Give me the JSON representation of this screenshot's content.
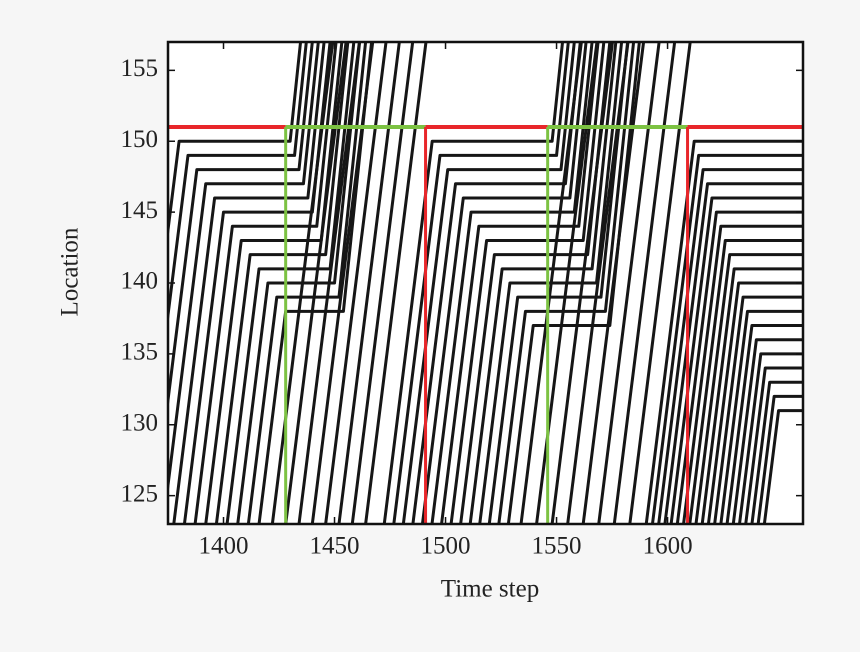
{
  "chart_data": {
    "type": "trajectory",
    "x_label": "Time step",
    "y_label": "Location",
    "xlim": [
      1375,
      1661
    ],
    "ylim": [
      123,
      157
    ],
    "xticks": [
      1400,
      1450,
      1500,
      1550,
      1600
    ],
    "yticks": [
      125,
      130,
      135,
      140,
      145,
      150,
      155
    ],
    "line_color": "#161616",
    "signal": {
      "stop_line": 151,
      "colors": {
        "red": "#e8262a",
        "green": "#7cc242"
      },
      "phases": [
        {
          "state": "red",
          "start": 1375,
          "end": 1428
        },
        {
          "state": "green",
          "start": 1428,
          "end": 1491
        },
        {
          "state": "red",
          "start": 1491,
          "end": 1546
        },
        {
          "state": "green",
          "start": 1546,
          "end": 1609
        },
        {
          "state": "red",
          "start": 1609,
          "end": 1661
        }
      ]
    },
    "series": [
      {
        "x": [
          1358.4,
          1380,
          1430,
          1434.7
        ],
        "y": [
          123,
          150,
          150,
          157
        ]
      },
      {
        "x": [
          1363.2,
          1384,
          1432,
          1437.3
        ],
        "y": [
          123,
          149,
          149,
          157
        ]
      },
      {
        "x": [
          1368,
          1388,
          1434,
          1440
        ],
        "y": [
          123,
          148,
          148,
          157
        ]
      },
      {
        "x": [
          1372.8,
          1392,
          1436,
          1442.7
        ],
        "y": [
          123,
          147,
          147,
          157
        ]
      },
      {
        "x": [
          1377.6,
          1396,
          1438,
          1445.3
        ],
        "y": [
          123,
          146,
          146,
          157
        ]
      },
      {
        "x": [
          1382.4,
          1400,
          1440,
          1448
        ],
        "y": [
          123,
          145,
          145,
          157
        ]
      },
      {
        "x": [
          1387.2,
          1404,
          1442,
          1450.7
        ],
        "y": [
          123,
          144,
          144,
          157
        ]
      },
      {
        "x": [
          1392,
          1408,
          1444,
          1453.3
        ],
        "y": [
          123,
          143,
          143,
          157
        ]
      },
      {
        "x": [
          1396.8,
          1412,
          1446,
          1456
        ],
        "y": [
          123,
          142,
          142,
          157
        ]
      },
      {
        "x": [
          1401.6,
          1416,
          1448,
          1458.7
        ],
        "y": [
          123,
          141,
          141,
          157
        ]
      },
      {
        "x": [
          1406.4,
          1420,
          1450,
          1461.3
        ],
        "y": [
          123,
          140,
          140,
          157
        ]
      },
      {
        "x": [
          1411.2,
          1424,
          1452,
          1464
        ],
        "y": [
          123,
          139,
          139,
          157
        ]
      },
      {
        "x": [
          1416,
          1428,
          1454,
          1466.7
        ],
        "y": [
          123,
          138,
          138,
          157
        ]
      },
      {
        "x": [
          1422,
          1449.2
        ],
        "y": [
          123,
          157
        ]
      },
      {
        "x": [
          1428,
          1455.2
        ],
        "y": [
          123,
          157
        ]
      },
      {
        "x": [
          1434,
          1461.2
        ],
        "y": [
          123,
          157
        ]
      },
      {
        "x": [
          1440,
          1467.2
        ],
        "y": [
          123,
          157
        ]
      },
      {
        "x": [
          1446,
          1473.2
        ],
        "y": [
          123,
          157
        ]
      },
      {
        "x": [
          1452,
          1479.2
        ],
        "y": [
          123,
          157
        ]
      },
      {
        "x": [
          1458,
          1485.2
        ],
        "y": [
          123,
          157
        ]
      },
      {
        "x": [
          1464,
          1491.2
        ],
        "y": [
          123,
          157
        ]
      },
      {
        "x": [
          1472.4,
          1494,
          1548,
          1552.7
        ],
        "y": [
          123,
          150,
          150,
          157
        ]
      },
      {
        "x": [
          1476.7,
          1497.5,
          1550,
          1555.3
        ],
        "y": [
          123,
          149,
          149,
          157
        ]
      },
      {
        "x": [
          1481,
          1501,
          1552,
          1558
        ],
        "y": [
          123,
          148,
          148,
          157
        ]
      },
      {
        "x": [
          1485.3,
          1504.5,
          1554,
          1560.7
        ],
        "y": [
          123,
          147,
          147,
          157
        ]
      },
      {
        "x": [
          1489.6,
          1508,
          1556,
          1563.3
        ],
        "y": [
          123,
          146,
          146,
          157
        ]
      },
      {
        "x": [
          1493.9,
          1511.5,
          1558,
          1566
        ],
        "y": [
          123,
          145,
          145,
          157
        ]
      },
      {
        "x": [
          1498.2,
          1515,
          1560,
          1568.7
        ],
        "y": [
          123,
          144,
          144,
          157
        ]
      },
      {
        "x": [
          1502.5,
          1518.5,
          1562,
          1571.3
        ],
        "y": [
          123,
          143,
          143,
          157
        ]
      },
      {
        "x": [
          1506.8,
          1522,
          1564,
          1574
        ],
        "y": [
          123,
          142,
          142,
          157
        ]
      },
      {
        "x": [
          1511.1,
          1525.5,
          1566,
          1576.7
        ],
        "y": [
          123,
          141,
          141,
          157
        ]
      },
      {
        "x": [
          1515.4,
          1529,
          1568,
          1579.3
        ],
        "y": [
          123,
          140,
          140,
          157
        ]
      },
      {
        "x": [
          1519.7,
          1532.5,
          1570,
          1582
        ],
        "y": [
          123,
          139,
          139,
          157
        ]
      },
      {
        "x": [
          1524,
          1536,
          1572,
          1584.7
        ],
        "y": [
          123,
          138,
          138,
          157
        ]
      },
      {
        "x": [
          1528.3,
          1539.5,
          1574,
          1587.3
        ],
        "y": [
          123,
          137,
          137,
          157
        ]
      },
      {
        "x": [
          1534,
          1561.2
        ],
        "y": [
          123,
          157
        ]
      },
      {
        "x": [
          1541,
          1568.2
        ],
        "y": [
          123,
          157
        ]
      },
      {
        "x": [
          1548,
          1575.2
        ],
        "y": [
          123,
          157
        ]
      },
      {
        "x": [
          1555,
          1582.2
        ],
        "y": [
          123,
          157
        ]
      },
      {
        "x": [
          1562,
          1589.2
        ],
        "y": [
          123,
          157
        ]
      },
      {
        "x": [
          1569,
          1596.2
        ],
        "y": [
          123,
          157
        ]
      },
      {
        "x": [
          1576,
          1603.2
        ],
        "y": [
          123,
          157
        ]
      },
      {
        "x": [
          1583,
          1610.2
        ],
        "y": [
          123,
          157
        ]
      },
      {
        "x": [
          1590.4,
          1612,
          1661
        ],
        "y": [
          123,
          150,
          150
        ]
      },
      {
        "x": [
          1593.2,
          1614,
          1661
        ],
        "y": [
          123,
          149,
          149
        ]
      },
      {
        "x": [
          1596,
          1616,
          1661
        ],
        "y": [
          123,
          148,
          148
        ]
      },
      {
        "x": [
          1598.8,
          1618,
          1661
        ],
        "y": [
          123,
          147,
          147
        ]
      },
      {
        "x": [
          1601.6,
          1620,
          1661
        ],
        "y": [
          123,
          146,
          146
        ]
      },
      {
        "x": [
          1604.4,
          1622,
          1661
        ],
        "y": [
          123,
          145,
          145
        ]
      },
      {
        "x": [
          1607.2,
          1624,
          1661
        ],
        "y": [
          123,
          144,
          144
        ]
      },
      {
        "x": [
          1610,
          1626,
          1661
        ],
        "y": [
          123,
          143,
          143
        ]
      },
      {
        "x": [
          1612.8,
          1628,
          1661
        ],
        "y": [
          123,
          142,
          142
        ]
      },
      {
        "x": [
          1615.6,
          1630,
          1661
        ],
        "y": [
          123,
          141,
          141
        ]
      },
      {
        "x": [
          1618.4,
          1632,
          1661
        ],
        "y": [
          123,
          140,
          140
        ]
      },
      {
        "x": [
          1621.2,
          1634,
          1661
        ],
        "y": [
          123,
          139,
          139
        ]
      },
      {
        "x": [
          1624,
          1636,
          1661
        ],
        "y": [
          123,
          138,
          138
        ]
      },
      {
        "x": [
          1626.8,
          1638,
          1661
        ],
        "y": [
          123,
          137,
          137
        ]
      },
      {
        "x": [
          1629.6,
          1640,
          1661
        ],
        "y": [
          123,
          136,
          136
        ]
      },
      {
        "x": [
          1632.4,
          1642,
          1661
        ],
        "y": [
          123,
          135,
          135
        ]
      },
      {
        "x": [
          1635.2,
          1644,
          1661
        ],
        "y": [
          123,
          134,
          134
        ]
      },
      {
        "x": [
          1638,
          1646,
          1661
        ],
        "y": [
          123,
          133,
          133
        ]
      },
      {
        "x": [
          1640.8,
          1648,
          1661
        ],
        "y": [
          123,
          132,
          132
        ]
      },
      {
        "x": [
          1643.6,
          1650,
          1661
        ],
        "y": [
          123,
          131,
          131
        ]
      }
    ]
  }
}
